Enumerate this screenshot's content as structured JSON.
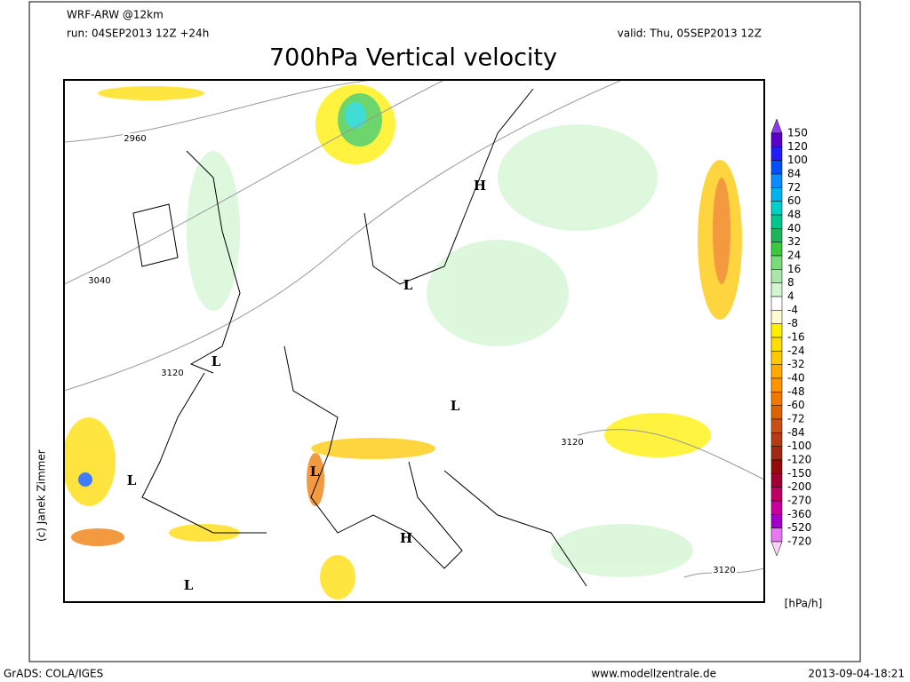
{
  "header": {
    "model": "WRF-ARW @12km",
    "run": "run: 04SEP2013 12Z +24h",
    "valid": "valid: Thu, 05SEP2013 12Z",
    "title": "700hPa Vertical velocity"
  },
  "map_labels": [
    "2960",
    "3040",
    "3120",
    "3120",
    "3120",
    "H",
    "H",
    "L",
    "L",
    "L",
    "L",
    "L",
    "L"
  ],
  "copyright": "(c) Janek Zimmer",
  "colorbar": {
    "levels": [
      150,
      120,
      100,
      84,
      72,
      60,
      48,
      40,
      32,
      24,
      16,
      8,
      4,
      -4,
      -8,
      -16,
      -24,
      -32,
      -40,
      -48,
      -60,
      -72,
      -84,
      -100,
      -120,
      -150,
      -200,
      -270,
      -360,
      -520,
      -720
    ],
    "colors": [
      "#8c3cf0",
      "#5a00c8",
      "#1e1eff",
      "#0050ff",
      "#0a8cff",
      "#00b4f0",
      "#00d2c8",
      "#00c88c",
      "#1eb45a",
      "#3cc83c",
      "#78dc78",
      "#aae6aa",
      "#d2f5d2",
      "#ffffff",
      "#fffad2",
      "#fff000",
      "#ffdc00",
      "#ffc800",
      "#ffaa00",
      "#ff9600",
      "#f07800",
      "#dc6400",
      "#c85014",
      "#b43c14",
      "#a02814",
      "#960a0a",
      "#a00032",
      "#be0064",
      "#c8009b",
      "#a000c8",
      "#e678f0",
      "#fad2fa"
    ],
    "unit": "[hPa/h]"
  },
  "footer": {
    "left": "GrADS: COLA/IGES",
    "center": "www.modellzentrale.de",
    "right": "2013-09-04-18:21"
  }
}
